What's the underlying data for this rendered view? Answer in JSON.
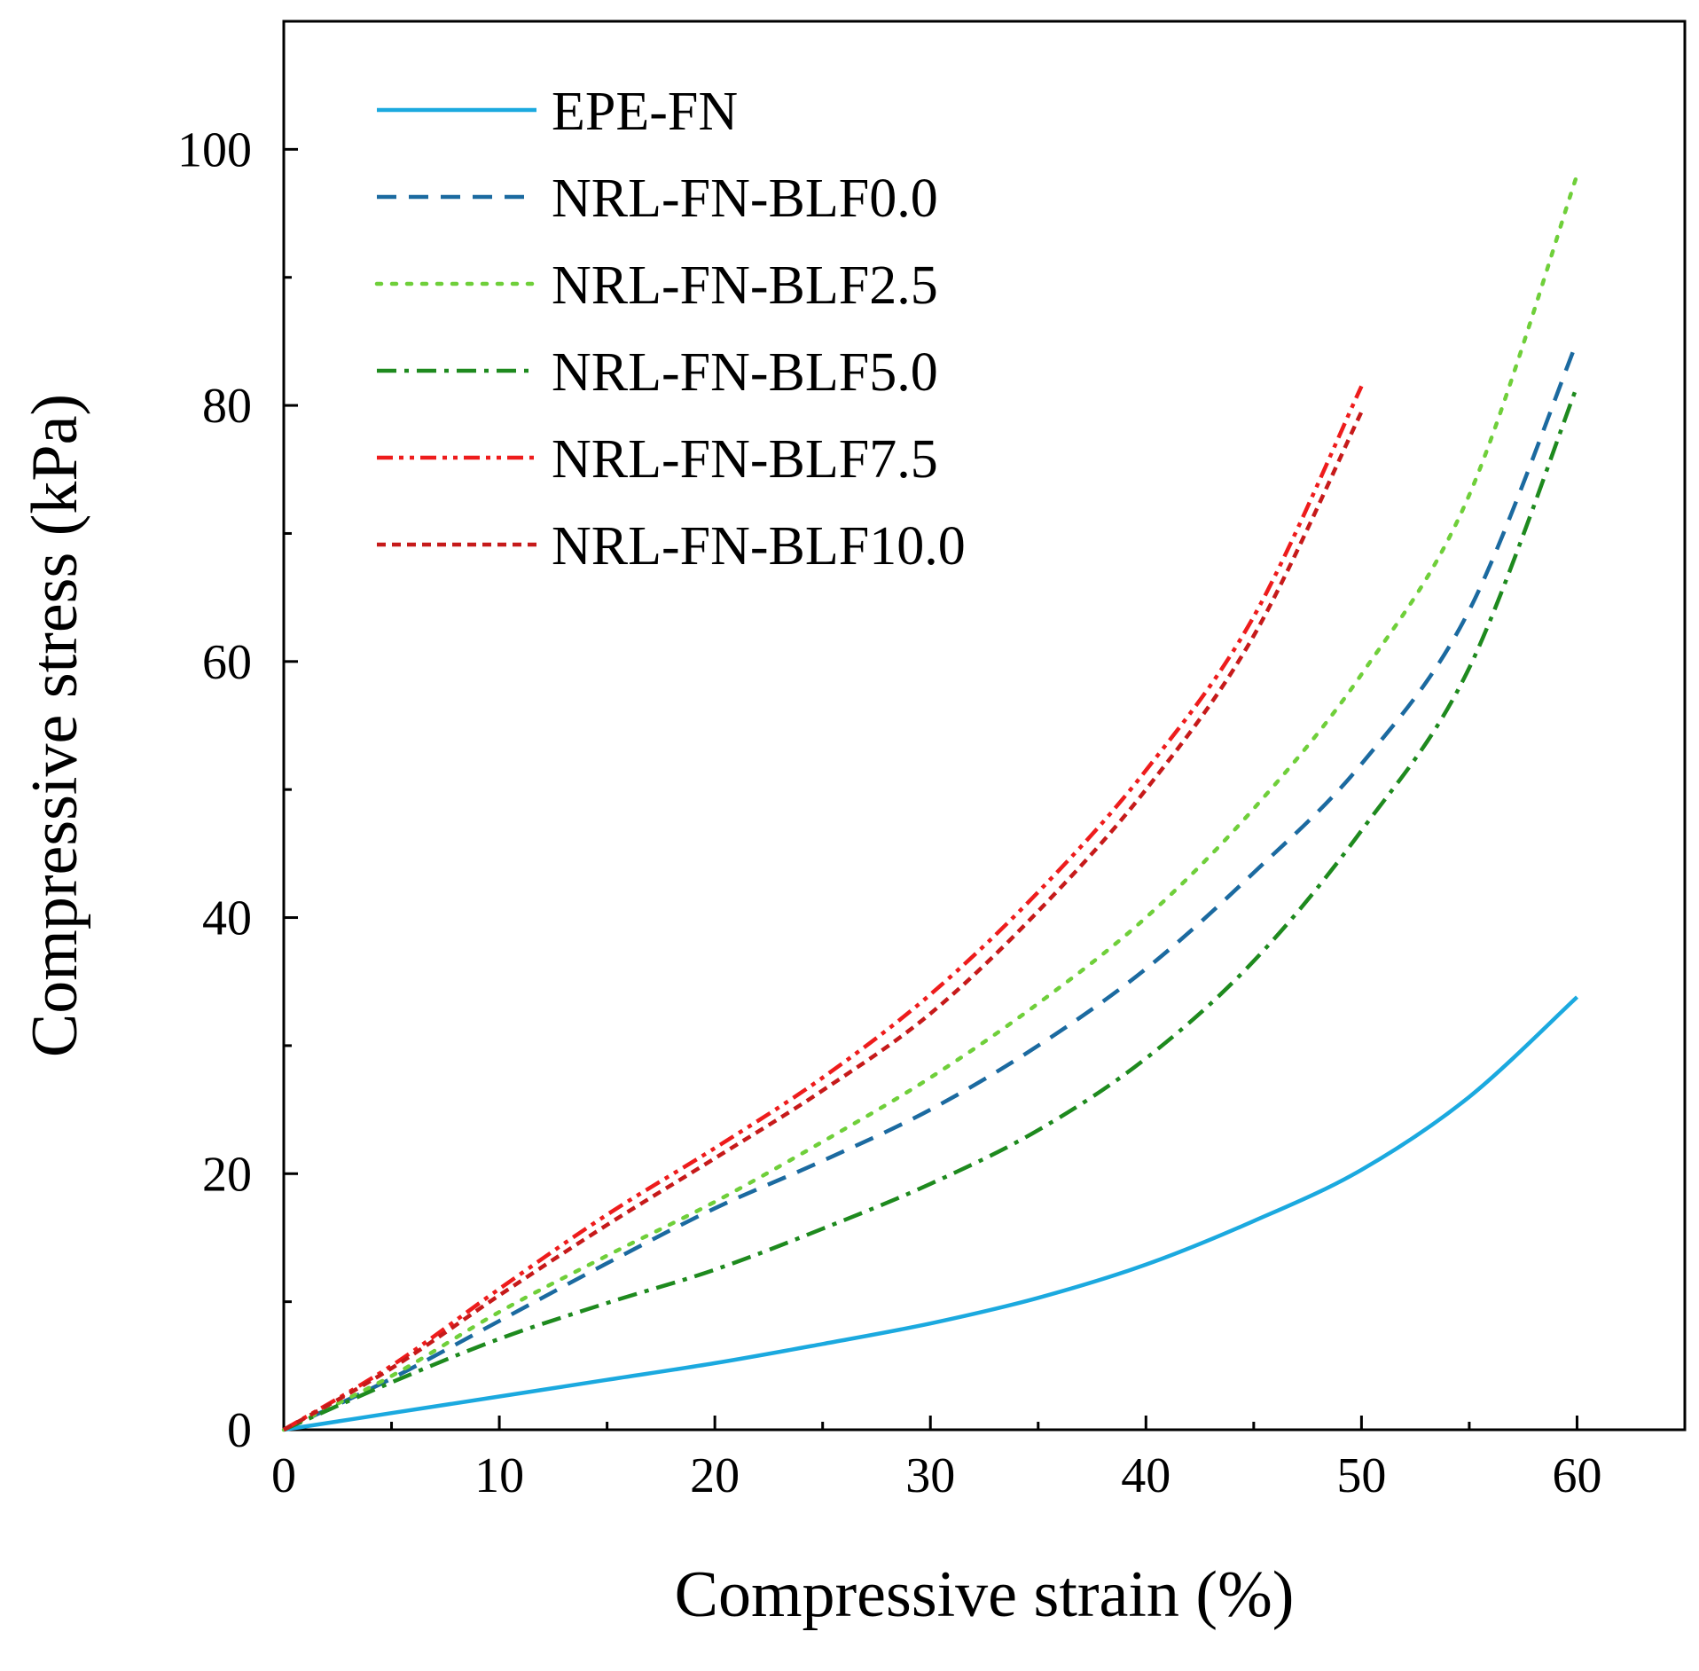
{
  "chart_data": {
    "type": "line",
    "xlabel": "Compressive strain (%)",
    "ylabel": "Compressive stress (kPa)",
    "xlim": [
      0,
      65
    ],
    "ylim": [
      0,
      110
    ],
    "x_ticks": [
      0,
      10,
      20,
      30,
      40,
      50,
      60
    ],
    "x_minor_ticks": [
      5,
      15,
      25,
      35,
      45,
      55
    ],
    "y_ticks": [
      0,
      20,
      40,
      60,
      80,
      100
    ],
    "y_minor_ticks": [
      10,
      30,
      50,
      70,
      90
    ],
    "grid": false,
    "legend_position": "top-left",
    "series": [
      {
        "name": "EPE-FN",
        "color": "#1ba9df",
        "dash": "solid",
        "x": [
          0,
          5,
          10,
          15,
          20,
          25,
          30,
          35,
          40,
          45,
          50,
          55,
          60
        ],
        "y": [
          0,
          1.3,
          2.6,
          3.9,
          5.2,
          6.7,
          8.3,
          10.3,
          12.9,
          16.3,
          20.3,
          26.0,
          33.8
        ]
      },
      {
        "name": "NRL-FN-BLF0.0",
        "color": "#1b6aa0",
        "dash": "dash",
        "x": [
          0,
          5,
          10,
          15,
          20,
          25,
          30,
          35,
          40,
          45,
          50,
          55,
          60
        ],
        "y": [
          0,
          4.0,
          8.5,
          13.0,
          17.3,
          21.0,
          25.0,
          30.0,
          36.0,
          43.5,
          52.0,
          64.0,
          85.0
        ]
      },
      {
        "name": "NRL-FN-BLF2.5",
        "color": "#6fcf3a",
        "dash": "dot",
        "x": [
          0,
          5,
          10,
          15,
          20,
          25,
          30,
          35,
          40,
          45,
          50,
          55,
          60
        ],
        "y": [
          0,
          4.2,
          9.2,
          13.6,
          17.8,
          22.5,
          27.5,
          33.3,
          40.0,
          48.5,
          59.0,
          73.0,
          98.0
        ]
      },
      {
        "name": "NRL-FN-BLF5.0",
        "color": "#1e8a1e",
        "dash": "dashdot",
        "x": [
          0,
          5,
          10,
          15,
          20,
          25,
          30,
          35,
          40,
          45,
          50,
          55,
          60
        ],
        "y": [
          0,
          3.7,
          7.1,
          9.9,
          12.5,
          15.7,
          19.2,
          23.4,
          29.0,
          36.6,
          46.8,
          59.5,
          81.5
        ]
      },
      {
        "name": "NRL-FN-BLF7.5",
        "color": "#ee1c1c",
        "dash": "dashdotdot",
        "x": [
          0,
          5,
          10,
          15,
          20,
          25,
          30,
          35,
          40,
          45,
          50
        ],
        "y": [
          0,
          5.0,
          11.0,
          16.8,
          22.0,
          27.5,
          34.0,
          42.0,
          51.5,
          63.5,
          81.5
        ]
      },
      {
        "name": "NRL-FN-BLF10.0",
        "color": "#c61a1a",
        "dash": "shortdash",
        "x": [
          0,
          5,
          10,
          15,
          20,
          25,
          30,
          35,
          40,
          45,
          50
        ],
        "y": [
          0,
          4.8,
          10.5,
          16.0,
          21.2,
          26.5,
          32.5,
          40.5,
          50.0,
          62.0,
          79.5
        ]
      }
    ]
  }
}
